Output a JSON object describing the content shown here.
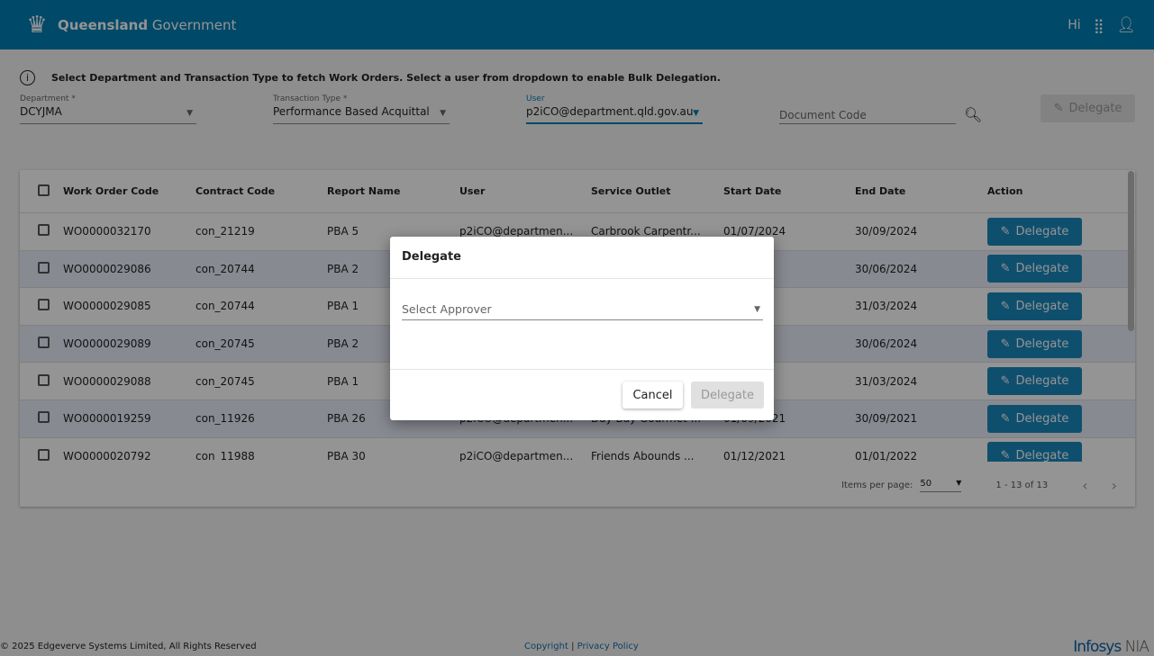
{
  "header": {
    "brand_bold": "Queensland",
    "brand_rest": "Government",
    "greeting": "Hi"
  },
  "info": "Select Department and Transaction Type to fetch Work Orders. Select a user from dropdown to enable Bulk Delegation.",
  "filters": {
    "department": {
      "label": "Department *",
      "value": "DCYJMA"
    },
    "transaction_type": {
      "label": "Transaction Type *",
      "value": "Performance Based Acquittal"
    },
    "user": {
      "label": "User",
      "value": "p2iCO@department.qld.gov.au"
    },
    "document_code": {
      "placeholder": "Document Code"
    },
    "delegate_label": "Delegate"
  },
  "table": {
    "columns": [
      "Work Order Code",
      "Contract Code",
      "Report Name",
      "User",
      "Service Outlet",
      "Start Date",
      "End Date",
      "Action"
    ],
    "action_label": "Delegate",
    "rows": [
      [
        "WO0000032170",
        "con_21219",
        "PBA 5",
        "p2iCO@departmen...",
        "Carbrook Carpentr...",
        "01/07/2024",
        "30/09/2024"
      ],
      [
        "WO0000029086",
        "con_20744",
        "PBA 2",
        "",
        "",
        "",
        "30/06/2024"
      ],
      [
        "WO0000029085",
        "con_20744",
        "PBA 1",
        "",
        "",
        "",
        "31/03/2024"
      ],
      [
        "WO0000029089",
        "con_20745",
        "PBA 2",
        "",
        "",
        "",
        "30/06/2024"
      ],
      [
        "WO0000029088",
        "con_20745",
        "PBA 1",
        "",
        "",
        "",
        "31/03/2024"
      ],
      [
        "WO0000019259",
        "con_11926",
        "PBA 26",
        "p2iCO@departmen...",
        "Day Bay Gourmet ...",
        "01/09/2021",
        "30/09/2021"
      ],
      [
        "WO0000020792",
        "con_11988",
        "PBA 30",
        "p2iCO@departmen...",
        "Friends Abounds ...",
        "01/12/2021",
        "01/01/2022"
      ]
    ]
  },
  "pager": {
    "items_label": "Items per page:",
    "per_page": "50",
    "range": "1 - 13 of 13"
  },
  "footer": {
    "copyright": "© 2025 Edgeverve Systems Limited, All Rights Reserved",
    "link1": "Copyright",
    "sep": "|",
    "link2": "Privacy Policy",
    "logo": "Infosys NIA"
  },
  "dialog": {
    "title": "Delegate",
    "select_placeholder": "Select Approver",
    "cancel": "Cancel",
    "confirm": "Delegate"
  },
  "colors": {
    "header": "#007eb3",
    "primary": "#1a88bd"
  }
}
